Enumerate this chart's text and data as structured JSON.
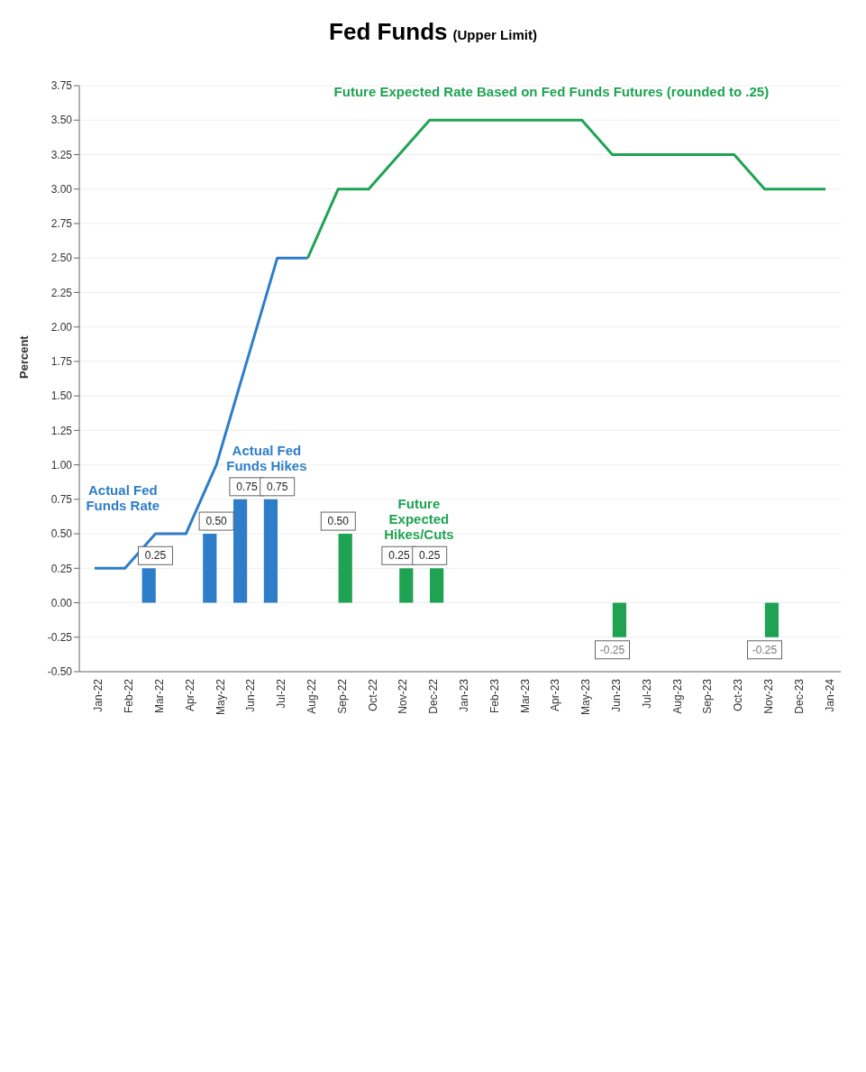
{
  "chart_data": {
    "type": "bar",
    "title": "Fed Funds",
    "subtitle": "(Upper Limit)",
    "ylabel": "Percent",
    "categories": [
      "Jan-22",
      "Feb-22",
      "Mar-22",
      "Apr-22",
      "May-22",
      "Jun-22",
      "Jul-22",
      "Aug-22",
      "Sep-22",
      "Oct-22",
      "Nov-22",
      "Dec-22",
      "Jan-23",
      "Feb-23",
      "Mar-23",
      "Apr-23",
      "May-23",
      "Jun-23",
      "Jul-23",
      "Aug-23",
      "Sep-23",
      "Oct-23",
      "Nov-23",
      "Dec-23",
      "Jan-24"
    ],
    "series": [
      {
        "color": "#2e7dc9",
        "values": [
          null,
          null,
          0.25,
          null,
          0.5,
          0.75,
          0.75,
          null,
          null,
          null,
          null,
          null,
          null,
          null,
          null,
          null,
          null,
          null,
          null,
          null,
          null,
          null,
          null,
          null,
          null
        ],
        "value_labels": [
          null,
          null,
          "0.25",
          null,
          "0.50",
          "0.75",
          "0.75",
          null,
          null,
          null,
          null,
          null,
          null,
          null,
          null,
          null,
          null,
          null,
          null,
          null,
          null,
          null,
          null,
          null,
          null
        ]
      },
      {
        "color": "#1fa352",
        "values": [
          null,
          null,
          null,
          null,
          null,
          null,
          null,
          null,
          0.5,
          null,
          0.25,
          0.25,
          null,
          null,
          null,
          null,
          null,
          -0.25,
          null,
          null,
          null,
          null,
          -0.25,
          null,
          null
        ],
        "value_labels": [
          null,
          null,
          null,
          null,
          null,
          null,
          null,
          null,
          "0.50",
          null,
          "0.25",
          "0.25",
          null,
          null,
          null,
          null,
          null,
          "-0.25",
          null,
          null,
          null,
          null,
          "-0.25",
          null,
          null
        ]
      },
      {
        "name": "Actual Fed Funds Rate",
        "type": "line",
        "color": "#2e7dc9",
        "values": [
          0.25,
          0.25,
          0.5,
          0.5,
          1.0,
          1.75,
          2.5,
          2.5,
          null,
          null,
          null,
          null,
          null,
          null,
          null,
          null,
          null,
          null,
          null,
          null,
          null,
          null,
          null,
          null,
          null
        ]
      },
      {
        "name": "Future Expected Rate Based on Fed Funds Futures (rounded to .25)",
        "type": "line",
        "color": "#1fa352",
        "values": [
          null,
          null,
          null,
          null,
          null,
          null,
          null,
          2.5,
          3.0,
          3.0,
          3.25,
          3.5,
          3.5,
          3.5,
          3.5,
          3.5,
          3.5,
          3.25,
          3.25,
          3.25,
          3.25,
          3.25,
          3.0,
          3.0,
          3.0
        ]
      }
    ],
    "ylim": [
      -0.5,
      3.75
    ],
    "yticks": [
      {
        "value": -0.5,
        "label": "-0.50"
      },
      {
        "value": -0.25,
        "label": "-0.25"
      },
      {
        "value": 0,
        "label": "0.00"
      },
      {
        "value": 0.25,
        "label": "0.25"
      },
      {
        "value": 0.5,
        "label": "0.50"
      },
      {
        "value": 0.75,
        "label": "0.75"
      },
      {
        "value": 1,
        "label": "1.00"
      },
      {
        "value": 1.25,
        "label": "1.25"
      },
      {
        "value": 1.5,
        "label": "1.50"
      },
      {
        "value": 1.75,
        "label": "1.75"
      },
      {
        "value": 2,
        "label": "2.00"
      },
      {
        "value": 2.25,
        "label": "2.25"
      },
      {
        "value": 2.5,
        "label": "2.50"
      },
      {
        "value": 2.75,
        "label": "2.75"
      },
      {
        "value": 3,
        "label": "3.00"
      },
      {
        "value": 3.25,
        "label": "3.25"
      },
      {
        "value": 3.5,
        "label": "3.50"
      },
      {
        "value": 3.75,
        "label": "3.75"
      }
    ],
    "annotations": [
      {
        "text": "Actual Fed Funds Hikes",
        "x": "Jun-22",
        "y": 0.75
      },
      {
        "text": "Future Expected Hikes/Cuts",
        "x": "Nov-22",
        "y": 0.25
      }
    ],
    "grid": "y",
    "legend": false,
    "marker": "none",
    "line_style": "solid"
  }
}
